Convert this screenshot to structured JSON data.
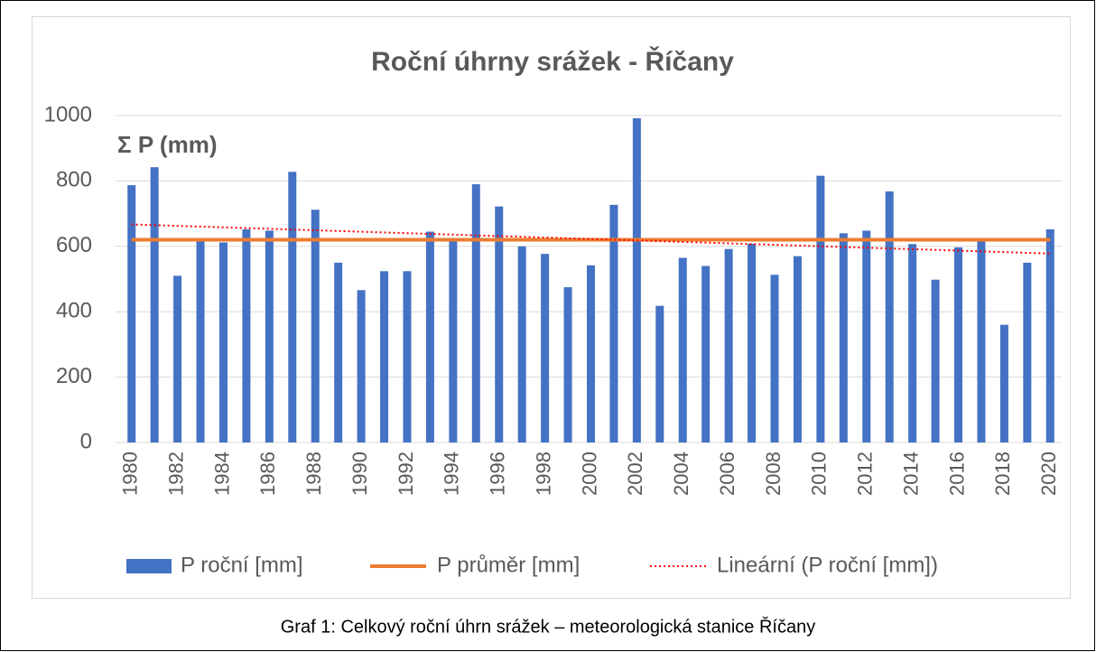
{
  "chart_data": {
    "type": "bar",
    "title": "Roční úhrny srážek - Říčany",
    "annotation": "Σ P (mm)",
    "caption": "Graf 1: Celkový roční úhrn srážek – meteorologická stanice Říčany",
    "categories": [
      "1980",
      null,
      "1982",
      null,
      "1984",
      null,
      "1986",
      null,
      "1988",
      null,
      "1990",
      null,
      "1992",
      null,
      "1994",
      null,
      "1996",
      null,
      "1998",
      null,
      "2000",
      null,
      "2002",
      null,
      "2004",
      null,
      "2006",
      null,
      "2008",
      null,
      "2010",
      null,
      "2012",
      null,
      "2014",
      null,
      "2016",
      null,
      "2018",
      null,
      "2020"
    ],
    "series": [
      {
        "name": "P roční [mm]",
        "color": "#4472c4",
        "values": [
          787,
          842,
          510,
          620,
          612,
          652,
          648,
          828,
          712,
          550,
          466,
          524,
          524,
          645,
          620,
          790,
          722,
          600,
          577,
          475,
          542,
          727,
          992,
          418,
          565,
          540,
          592,
          608,
          513,
          570,
          816,
          640,
          648,
          768,
          607,
          498,
          597,
          618,
          360,
          550,
          652
        ]
      },
      {
        "name": "P průměr [mm]",
        "color": "#ed7d31",
        "type": "line",
        "x": [
          "1980",
          "2020"
        ],
        "values": [
          620,
          620
        ]
      },
      {
        "name": "Lineární (P roční [mm])",
        "color": "#ff0000",
        "type": "line",
        "dotted": true,
        "x": [
          "1980",
          "2020"
        ],
        "values": [
          667,
          578
        ]
      }
    ],
    "ylim": [
      0,
      1000
    ],
    "yticks": [
      0,
      200,
      400,
      600,
      800,
      1000
    ],
    "grid": true
  }
}
